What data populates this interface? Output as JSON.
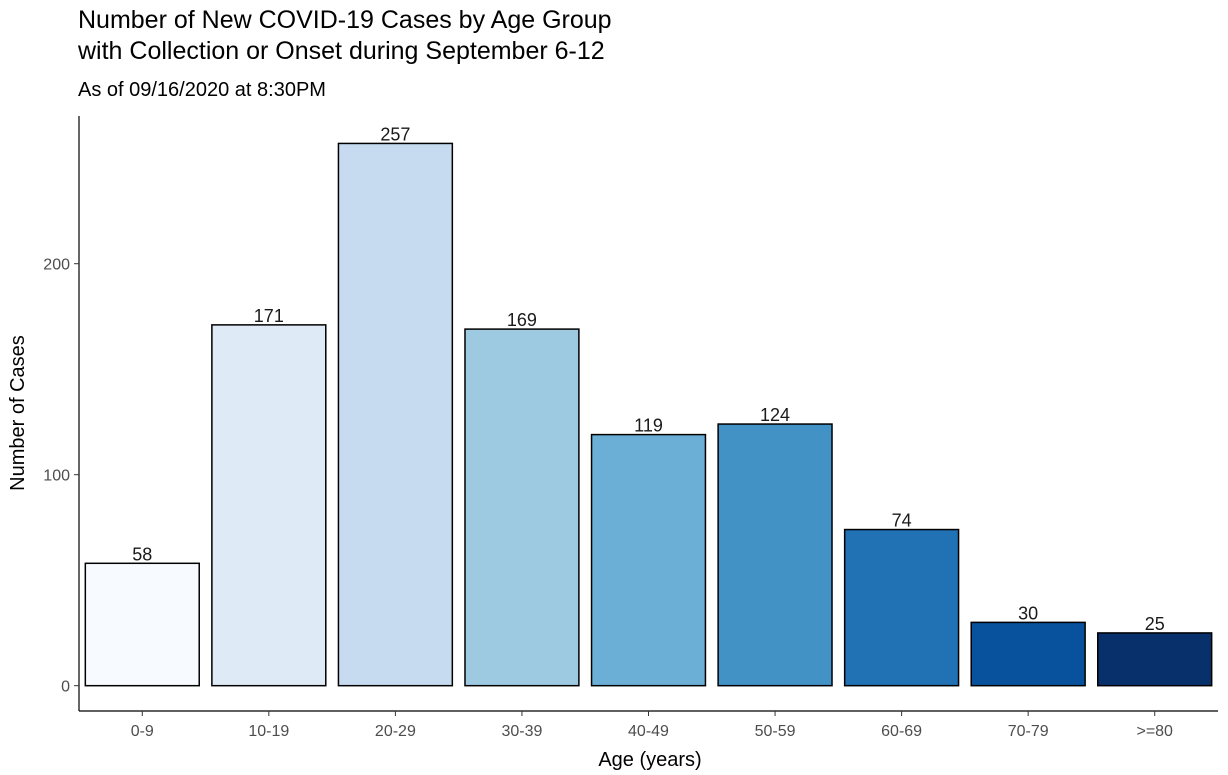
{
  "title_lines": [
    "Number of New COVID-19 Cases by Age Group",
    "with Collection or Onset during September 6-12"
  ],
  "subtitle": "As of 09/16/2020 at 8:30PM",
  "chart_data": {
    "type": "bar",
    "title": "Number of New COVID-19 Cases by Age Group with Collection or Onset during September 6-12",
    "subtitle": "As of 09/16/2020 at 8:30PM",
    "xlabel": "Age (years)",
    "ylabel": "Number of Cases",
    "categories": [
      "0-9",
      "10-19",
      "20-29",
      "30-39",
      "40-49",
      "50-59",
      "60-69",
      "70-79",
      ">=80"
    ],
    "values": [
      58,
      171,
      257,
      169,
      119,
      124,
      74,
      30,
      25
    ],
    "colors": [
      "#f7fbff",
      "#deebf7",
      "#c6dbef",
      "#9ecae1",
      "#6baed6",
      "#4292c6",
      "#2171b5",
      "#08519c",
      "#08306b"
    ],
    "yticks": [
      0,
      100,
      200
    ],
    "ylim": [
      -12,
      270
    ],
    "grid": false,
    "legend": "none",
    "bar_outline_color": "#000000"
  }
}
